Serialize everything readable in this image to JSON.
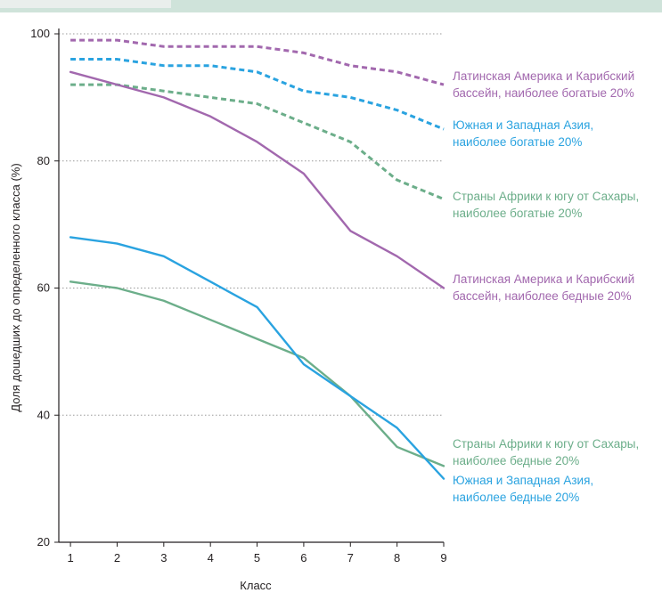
{
  "chart_data": {
    "type": "line",
    "title": "",
    "xlabel": "Класс",
    "ylabel": "Доля дошедших до определенного класса (%)",
    "x": [
      1,
      2,
      3,
      4,
      5,
      6,
      7,
      8,
      9
    ],
    "xlim": [
      0.75,
      9
    ],
    "ylim": [
      20,
      100
    ],
    "yticks": [
      20,
      40,
      60,
      80,
      100
    ],
    "grid": "horizontal dotted",
    "legend": "inline labels at right",
    "series": [
      {
        "name": "Латинская Америка и Карибский бассейн, наиболее богатые 20%",
        "label_lines": [
          "Латинская Америка и Карибский",
          "бассейн, наиболее богатые 20%"
        ],
        "color": "#a268ae",
        "style": "dashed",
        "values": [
          99,
          99,
          98,
          98,
          98,
          97,
          95,
          94,
          92
        ]
      },
      {
        "name": "Южная и Западная Азия, наиболее богатые 20%",
        "label_lines": [
          "Южная и Западная Азия,",
          "наиболее богатые 20%"
        ],
        "color": "#2aa3e0",
        "style": "dashed",
        "values": [
          96,
          96,
          95,
          95,
          94,
          91,
          90,
          88,
          85
        ]
      },
      {
        "name": "Страны Африки к югу от Сахары, наиболее богатые 20%",
        "label_lines": [
          "Страны Африки к югу от Сахары,",
          "наиболее богатые 20%"
        ],
        "color": "#6cae8a",
        "style": "dashed",
        "values": [
          92,
          92,
          91,
          90,
          89,
          86,
          83,
          77,
          74
        ]
      },
      {
        "name": "Латинская Америка и Карибский бассейн, наиболее бедные 20%",
        "label_lines": [
          "Латинская Америка и Карибский",
          "бассейн, наиболее бедные 20%"
        ],
        "color": "#a268ae",
        "style": "solid",
        "values": [
          94,
          92,
          90,
          87,
          83,
          78,
          69,
          65,
          60
        ]
      },
      {
        "name": "Страны Африки к югу от Сахары, наиболее бедные 20%",
        "label_lines": [
          "Страны Африки к югу от Сахары,",
          "наиболее бедные 20%"
        ],
        "color": "#6cae8a",
        "style": "solid",
        "values": [
          61,
          60,
          58,
          55,
          52,
          49,
          43,
          35,
          32
        ]
      },
      {
        "name": "Южная и Западная Азия, наиболее бедные 20%",
        "label_lines": [
          "Южная и Западная Азия,",
          "наиболее бедные 20%"
        ],
        "color": "#2aa3e0",
        "style": "solid",
        "values": [
          68,
          67,
          65,
          61,
          57,
          48,
          43,
          38,
          30
        ]
      }
    ]
  },
  "colors": {
    "header_band": "#cfe3da",
    "header_block": "#e9eeec",
    "gridline": "#9a9a9a",
    "axis": "#231f20",
    "text": "#231f20"
  }
}
